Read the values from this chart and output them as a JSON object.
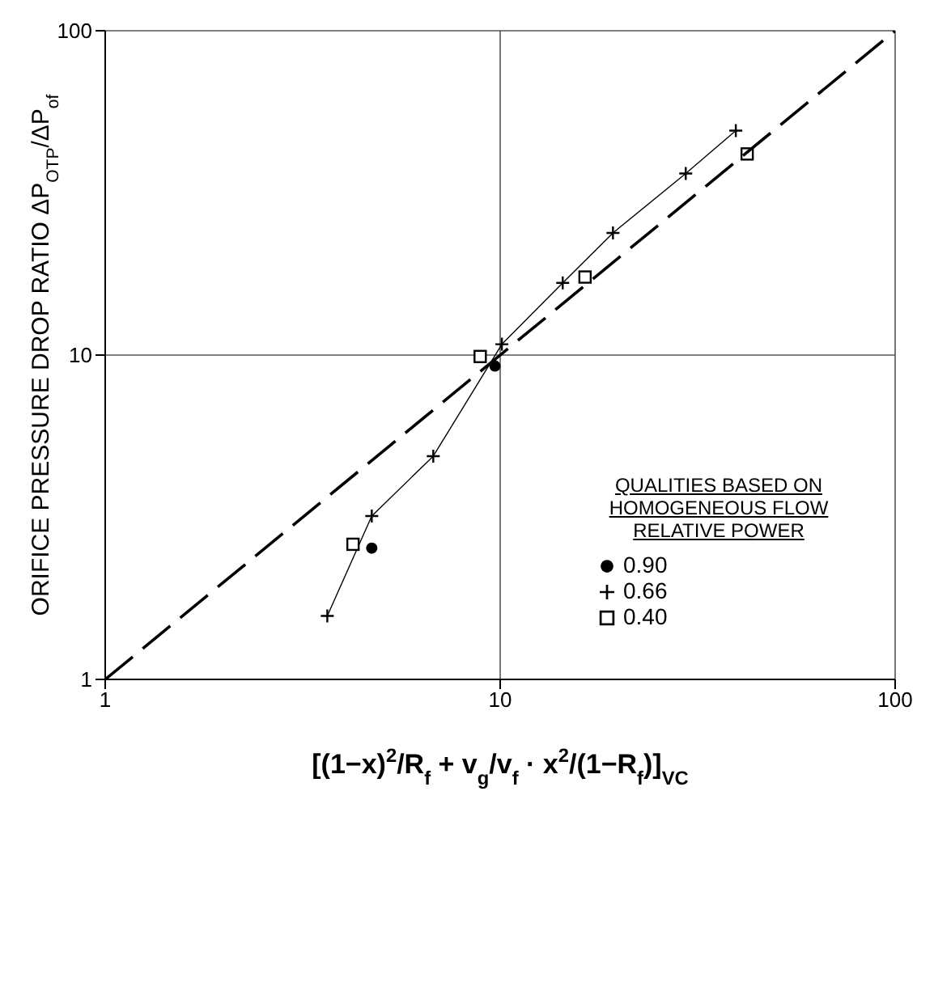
{
  "chart_data": {
    "type": "scatter",
    "xlabel": "[(1−x)$^{2}$/R$_{f}$ + v$_{g}$/v$_{f}$ · x$^{2}$/(1−R$_{f}$)]$_{VC}$",
    "ylabel": "ORIFICE PRESSURE DROP RATIO   ΔP$_{OTP}$/ΔP$_{of}$",
    "legend_title": "QUALITIES BASED ON HOMOGENEOUS FLOW RELATIVE POWER",
    "log": "xy",
    "xlim": [
      1,
      100
    ],
    "ylim": [
      1,
      100
    ],
    "xticks": [
      1,
      10,
      100
    ],
    "yticks": [
      1,
      10,
      100
    ],
    "grid": true,
    "legend": "right",
    "series": [
      {
        "name": "0.90",
        "marker": "circle",
        "color": "#000000",
        "x": [
          4.73,
          9.7
        ],
        "values": [
          2.54,
          9.25
        ]
      },
      {
        "name": "0.66",
        "type": "line",
        "marker": "cross",
        "line_style": "solid",
        "color": "#000000",
        "x": [
          3.65,
          4.73,
          6.77,
          10.1,
          14.4,
          19.3,
          29.5,
          39.5
        ],
        "values": [
          1.57,
          3.19,
          4.88,
          10.8,
          16.7,
          23.8,
          36.3,
          49.2
        ]
      },
      {
        "name": "0.40",
        "marker": "square",
        "color": "#000000",
        "x": [
          4.24,
          8.9,
          16.4,
          42.2
        ],
        "values": [
          2.61,
          9.9,
          17.4,
          41.7
        ]
      },
      {
        "type": "line",
        "marker": "none",
        "line_style": "dashed",
        "color": "#000000",
        "x": [
          1,
          100
        ],
        "values": [
          1,
          100
        ]
      }
    ]
  }
}
